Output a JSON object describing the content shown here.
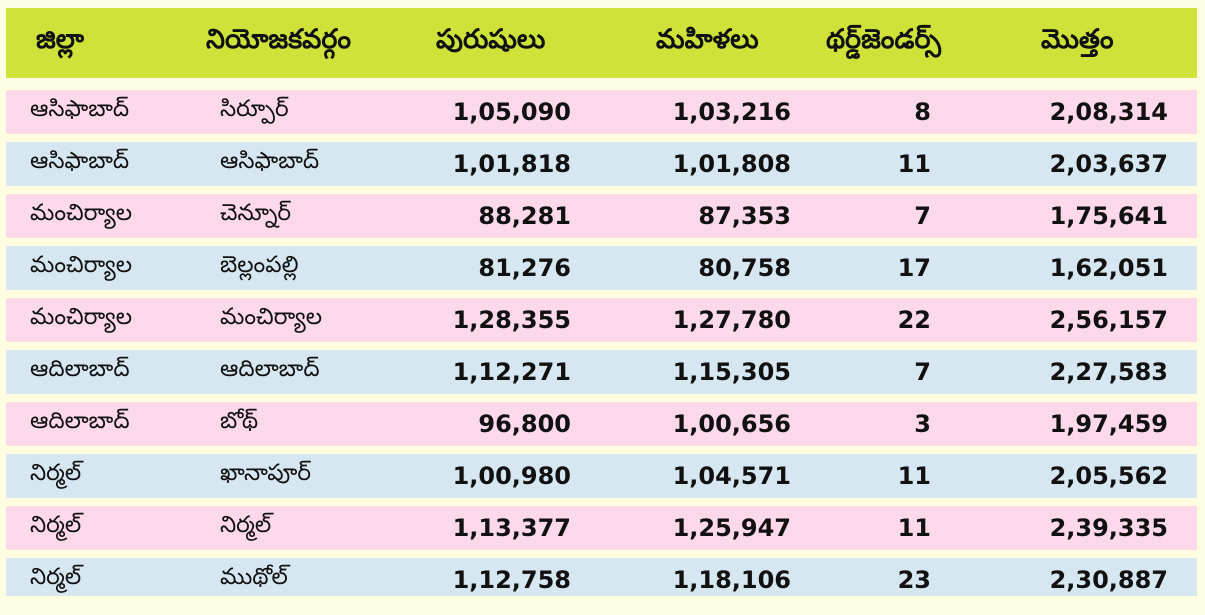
{
  "table": {
    "headers": {
      "district": "జిల్లా",
      "constituency": "నియోజకవర్గం",
      "men": "పురుషులు",
      "women": "మహిళలు",
      "third_gender": "థర్డ్‌జెండర్స్",
      "total": "మొత్తం"
    },
    "rows": [
      {
        "district": "ఆసిఫాబాద్",
        "constituency": "సిర్పూర్",
        "men": "1,05,090",
        "women": "1,03,216",
        "third_gender": "8",
        "total": "2,08,314"
      },
      {
        "district": "ఆసిఫాబాద్",
        "constituency": "ఆసిఫాబాద్",
        "men": "1,01,818",
        "women": "1,01,808",
        "third_gender": "11",
        "total": "2,03,637"
      },
      {
        "district": "మంచిర్యాల",
        "constituency": "చెన్నూర్",
        "men": "88,281",
        "women": "87,353",
        "third_gender": "7",
        "total": "1,75,641"
      },
      {
        "district": "మంచిర్యాల",
        "constituency": "బెల్లంపల్లి",
        "men": "81,276",
        "women": "80,758",
        "third_gender": "17",
        "total": "1,62,051"
      },
      {
        "district": "మంచిర్యాల",
        "constituency": "మంచిర్యాల",
        "men": "1,28,355",
        "women": "1,27,780",
        "third_gender": "22",
        "total": "2,56,157"
      },
      {
        "district": "ఆదిలాబాద్",
        "constituency": "ఆదిలాబాద్",
        "men": "1,12,271",
        "women": "1,15,305",
        "third_gender": "7",
        "total": "2,27,583"
      },
      {
        "district": "ఆదిలాబాద్",
        "constituency": "బోథ్",
        "men": "96,800",
        "women": "1,00,656",
        "third_gender": "3",
        "total": "1,97,459"
      },
      {
        "district": "నిర్మల్",
        "constituency": "ఖానాపూర్",
        "men": "1,00,980",
        "women": "1,04,571",
        "third_gender": "11",
        "total": "2,05,562"
      },
      {
        "district": "నిర్మల్",
        "constituency": "నిర్మల్",
        "men": "1,13,377",
        "women": "1,25,947",
        "third_gender": "11",
        "total": "2,39,335"
      },
      {
        "district": "నిర్మల్",
        "constituency": "ముథోల్",
        "men": "1,12,758",
        "women": "1,18,106",
        "third_gender": "23",
        "total": "2,30,887"
      }
    ]
  },
  "colors": {
    "header": "#cfe23a",
    "row_pink": "#fbd8ea",
    "row_blue": "#d7e7f2",
    "background": "#fdfde2"
  }
}
